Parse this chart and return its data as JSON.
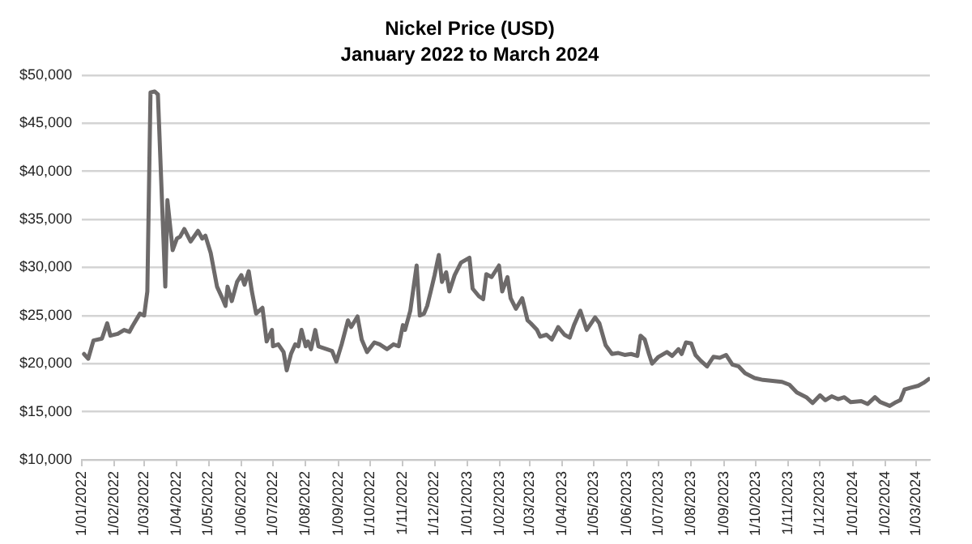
{
  "chart_data": {
    "type": "line",
    "title": "Nickel Price (USD)",
    "subtitle": "January 2022 to March 2024",
    "x": [
      "2022-01-03",
      "2022-01-07",
      "2022-01-12",
      "2022-01-20",
      "2022-01-25",
      "2022-01-28",
      "2022-02-04",
      "2022-02-10",
      "2022-02-15",
      "2022-02-18",
      "2022-02-25",
      "2022-03-01",
      "2022-03-04",
      "2022-03-07",
      "2022-03-11",
      "2022-03-14",
      "2022-03-21",
      "2022-03-23",
      "2022-03-28",
      "2022-04-01",
      "2022-04-04",
      "2022-04-08",
      "2022-04-14",
      "2022-04-21",
      "2022-04-25",
      "2022-04-28",
      "2022-05-03",
      "2022-05-09",
      "2022-05-14",
      "2022-05-17",
      "2022-05-19",
      "2022-05-23",
      "2022-05-28",
      "2022-06-01",
      "2022-06-04",
      "2022-06-08",
      "2022-06-11",
      "2022-06-15",
      "2022-06-21",
      "2022-06-25",
      "2022-06-30",
      "2022-07-01",
      "2022-07-06",
      "2022-07-11",
      "2022-07-14",
      "2022-07-18",
      "2022-07-22",
      "2022-07-25",
      "2022-07-28",
      "2022-08-01",
      "2022-08-03",
      "2022-08-06",
      "2022-08-10",
      "2022-08-13",
      "2022-08-21",
      "2022-08-26",
      "2022-08-30",
      "2022-09-04",
      "2022-09-10",
      "2022-09-13",
      "2022-09-19",
      "2022-09-23",
      "2022-09-28",
      "2022-10-05",
      "2022-10-10",
      "2022-10-17",
      "2022-10-23",
      "2022-10-28",
      "2022-11-01",
      "2022-11-03",
      "2022-11-08",
      "2022-11-14",
      "2022-11-17",
      "2022-11-21",
      "2022-11-24",
      "2022-11-28",
      "2022-12-01",
      "2022-12-05",
      "2022-12-08",
      "2022-12-12",
      "2022-12-15",
      "2022-12-20",
      "2022-12-26",
      "2023-01-03",
      "2023-01-06",
      "2023-01-12",
      "2023-01-16",
      "2023-01-19",
      "2023-01-24",
      "2023-01-31",
      "2023-02-03",
      "2023-02-08",
      "2023-02-11",
      "2023-02-16",
      "2023-02-22",
      "2023-02-27",
      "2023-03-02",
      "2023-03-08",
      "2023-03-11",
      "2023-03-17",
      "2023-03-22",
      "2023-03-28",
      "2023-04-03",
      "2023-04-08",
      "2023-04-12",
      "2023-04-18",
      "2023-04-24",
      "2023-05-02",
      "2023-05-06",
      "2023-05-12",
      "2023-05-18",
      "2023-05-24",
      "2023-05-30",
      "2023-06-05",
      "2023-06-11",
      "2023-06-14",
      "2023-06-18",
      "2023-06-22",
      "2023-06-25",
      "2023-07-01",
      "2023-07-09",
      "2023-07-14",
      "2023-07-20",
      "2023-07-23",
      "2023-07-27",
      "2023-08-01",
      "2023-08-05",
      "2023-08-10",
      "2023-08-16",
      "2023-08-22",
      "2023-08-28",
      "2023-09-03",
      "2023-09-09",
      "2023-09-15",
      "2023-09-21",
      "2023-09-30",
      "2023-10-08",
      "2023-10-17",
      "2023-10-26",
      "2023-11-02",
      "2023-11-09",
      "2023-11-18",
      "2023-11-24",
      "2023-12-01",
      "2023-12-06",
      "2023-12-12",
      "2023-12-18",
      "2023-12-24",
      "2023-12-30",
      "2024-01-09",
      "2024-01-15",
      "2024-01-22",
      "2024-01-27",
      "2024-02-05",
      "2024-02-11",
      "2024-02-15",
      "2024-02-19",
      "2024-02-25",
      "2024-03-03",
      "2024-03-08",
      "2024-03-13"
    ],
    "series": [
      {
        "color": "#6d6a6a",
        "values": [
          21000,
          20500,
          22400,
          22600,
          24200,
          22900,
          23100,
          23500,
          23300,
          23900,
          25200,
          25000,
          27500,
          48200,
          48300,
          48000,
          28000,
          37000,
          31800,
          33000,
          33200,
          34000,
          32700,
          33800,
          33000,
          33300,
          31500,
          28000,
          26800,
          26000,
          28000,
          26500,
          28500,
          29200,
          28200,
          29600,
          27500,
          25200,
          25800,
          22300,
          23500,
          21800,
          22000,
          21200,
          19300,
          21000,
          22000,
          21800,
          23500,
          21800,
          22300,
          21500,
          23500,
          21800,
          21500,
          21300,
          20200,
          22000,
          24500,
          23800,
          24900,
          22500,
          21200,
          22200,
          22000,
          21500,
          22000,
          21800,
          24000,
          23500,
          25500,
          30200,
          25000,
          25200,
          26000,
          27800,
          29200,
          31300,
          28500,
          29500,
          27500,
          29200,
          30500,
          31000,
          27800,
          27000,
          26700,
          29300,
          29000,
          30200,
          27500,
          29000,
          26800,
          25700,
          26800,
          24500,
          24200,
          23500,
          22800,
          23000,
          22500,
          23800,
          23000,
          22700,
          24000,
          25500,
          23500,
          24800,
          24200,
          21900,
          21000,
          21100,
          20900,
          21000,
          20800,
          22900,
          22500,
          21000,
          20000,
          20700,
          21200,
          20800,
          21500,
          21000,
          22200,
          22100,
          20900,
          20300,
          19700,
          20700,
          20600,
          20900,
          19900,
          19700,
          19000,
          18500,
          18300,
          18200,
          18100,
          17800,
          17000,
          16500,
          15900,
          16700,
          16200,
          16600,
          16300,
          16500,
          16000,
          16100,
          15800,
          16500,
          16000,
          15600,
          16000,
          16200,
          17300,
          17500,
          17700,
          18000,
          18400
        ]
      }
    ],
    "xlim": [
      "2022-01-01",
      "2024-03-14"
    ],
    "xticks": [
      {
        "value": "2022-01-01",
        "label": "1/01/2022"
      },
      {
        "value": "2022-02-01",
        "label": "1/02/2022"
      },
      {
        "value": "2022-03-01",
        "label": "1/03/2022"
      },
      {
        "value": "2022-04-01",
        "label": "1/04/2022"
      },
      {
        "value": "2022-05-01",
        "label": "1/05/2022"
      },
      {
        "value": "2022-06-01",
        "label": "1/06/2022"
      },
      {
        "value": "2022-07-01",
        "label": "1/07/2022"
      },
      {
        "value": "2022-08-01",
        "label": "1/08/2022"
      },
      {
        "value": "2022-09-01",
        "label": "1/09/2022"
      },
      {
        "value": "2022-10-01",
        "label": "1/10/2022"
      },
      {
        "value": "2022-11-01",
        "label": "1/11/2022"
      },
      {
        "value": "2022-12-01",
        "label": "1/12/2022"
      },
      {
        "value": "2023-01-01",
        "label": "1/01/2023"
      },
      {
        "value": "2023-02-01",
        "label": "1/02/2023"
      },
      {
        "value": "2023-03-01",
        "label": "1/03/2023"
      },
      {
        "value": "2023-04-01",
        "label": "1/04/2023"
      },
      {
        "value": "2023-05-01",
        "label": "1/05/2023"
      },
      {
        "value": "2023-06-01",
        "label": "1/06/2023"
      },
      {
        "value": "2023-07-01",
        "label": "1/07/2023"
      },
      {
        "value": "2023-08-01",
        "label": "1/08/2023"
      },
      {
        "value": "2023-09-01",
        "label": "1/09/2023"
      },
      {
        "value": "2023-10-01",
        "label": "1/10/2023"
      },
      {
        "value": "2023-11-01",
        "label": "1/11/2023"
      },
      {
        "value": "2023-12-01",
        "label": "1/12/2023"
      },
      {
        "value": "2024-01-01",
        "label": "1/01/2024"
      },
      {
        "value": "2024-02-01",
        "label": "1/02/2024"
      },
      {
        "value": "2024-03-01",
        "label": "1/03/2024"
      }
    ],
    "ylim": [
      10000,
      50000
    ],
    "yticks": [
      {
        "value": 10000,
        "label": "$10,000"
      },
      {
        "value": 15000,
        "label": "$15,000"
      },
      {
        "value": 20000,
        "label": "$20,000"
      },
      {
        "value": 25000,
        "label": "$25,000"
      },
      {
        "value": 30000,
        "label": "$30,000"
      },
      {
        "value": 35000,
        "label": "$35,000"
      },
      {
        "value": 40000,
        "label": "$40,000"
      },
      {
        "value": 45000,
        "label": "$45,000"
      },
      {
        "value": 50000,
        "label": "$50,000"
      }
    ],
    "grid": "y",
    "marker": "none",
    "line_style": "solid",
    "legend": false
  }
}
